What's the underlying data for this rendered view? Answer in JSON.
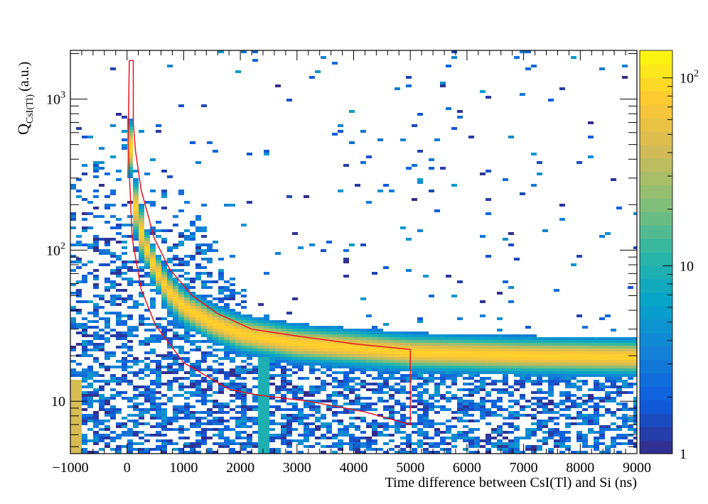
{
  "chart_data": {
    "type": "heatmap",
    "title": "",
    "xlabel": "Time difference between CsI(Tl) and Si (ns)",
    "ylabel": {
      "main": "Q",
      "subscript": "CsI(Tl)",
      "unit": "(a.u.)"
    },
    "x_axis": {
      "range": [
        -1000,
        9000
      ],
      "ticks": [
        -1000,
        0,
        1000,
        2000,
        3000,
        4000,
        5000,
        6000,
        7000,
        8000,
        9000
      ],
      "tick_labels": [
        "−1000",
        "0",
        "1000",
        "2000",
        "3000",
        "4000",
        "5000",
        "6000",
        "7000",
        "8000",
        "9000"
      ]
    },
    "y_axis": {
      "scale": "log",
      "range": [
        4.5,
        2100
      ],
      "ticks": [
        {
          "value": 10,
          "base": "10",
          "exp": ""
        },
        {
          "value": 100,
          "base": "10",
          "exp": "2"
        },
        {
          "value": 1000,
          "base": "10",
          "exp": "3"
        }
      ]
    },
    "colorbar": {
      "scale": "log",
      "range": [
        1,
        140
      ],
      "ticks": [
        {
          "value": 1,
          "base": "1",
          "exp": ""
        },
        {
          "value": 10,
          "base": "10",
          "exp": ""
        },
        {
          "value": 100,
          "base": "10",
          "exp": "2"
        }
      ],
      "palette": [
        "#352a87",
        "#0f5cdd",
        "#1481d6",
        "#06a4ca",
        "#2eb7a4",
        "#87bf77",
        "#d1bb59",
        "#fec832",
        "#f9fb0e"
      ]
    },
    "ridge": {
      "description_points": [
        [
          30,
          900
        ],
        [
          60,
          400
        ],
        [
          100,
          250
        ],
        [
          200,
          150
        ],
        [
          400,
          90
        ],
        [
          700,
          55
        ],
        [
          1000,
          42
        ],
        [
          1500,
          33
        ],
        [
          2000,
          28
        ],
        [
          3000,
          24
        ],
        [
          4000,
          22.5
        ],
        [
          5000,
          21
        ],
        [
          7000,
          20
        ],
        [
          9000,
          19.5
        ]
      ]
    },
    "gate_polygon": {
      "color": "#e8141e",
      "points": [
        [
          40,
          1800
        ],
        [
          110,
          1800
        ],
        [
          110,
          700
        ],
        [
          150,
          450
        ],
        [
          250,
          250
        ],
        [
          480,
          120
        ],
        [
          750,
          75
        ],
        [
          1150,
          50
        ],
        [
          1600,
          38
        ],
        [
          2200,
          30
        ],
        [
          3000,
          27
        ],
        [
          4000,
          24
        ],
        [
          5000,
          22
        ],
        [
          5000,
          7
        ],
        [
          4200,
          8.5
        ],
        [
          3200,
          10
        ],
        [
          2300,
          11
        ],
        [
          1800,
          12
        ],
        [
          1000,
          18
        ],
        [
          500,
          32
        ],
        [
          250,
          55
        ],
        [
          90,
          120
        ],
        [
          20,
          500
        ],
        [
          40,
          1800
        ]
      ]
    }
  }
}
